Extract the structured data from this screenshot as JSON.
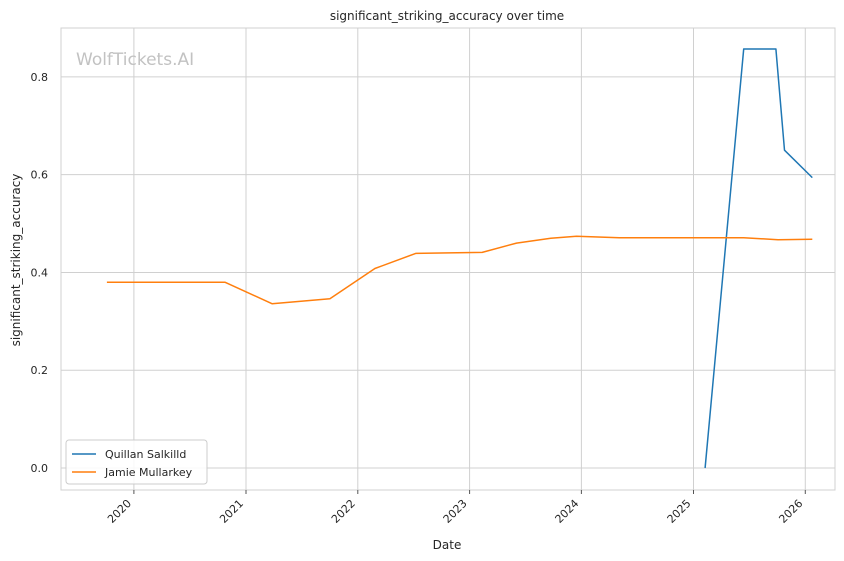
{
  "chart_data": {
    "type": "line",
    "title": "significant_striking_accuracy over time",
    "xlabel": "Date",
    "ylabel": "significant_striking_accuracy",
    "watermark": "WolfTickets.AI",
    "x_ticks": [
      "2020",
      "2021",
      "2022",
      "2023",
      "2024",
      "2025",
      "2026"
    ],
    "y_ticks": [
      "0.0",
      "0.2",
      "0.4",
      "0.6",
      "0.8"
    ],
    "ylim": [
      -0.045,
      0.9
    ],
    "xlim": [
      "2019-05-08",
      "2026-04-08"
    ],
    "grid": true,
    "legend_position": "lower-left",
    "series": [
      {
        "name": "Quillan Salkilld",
        "color": "#1f77b4",
        "points": [
          {
            "x": "2025-02-08",
            "y": 0.0
          },
          {
            "x": "2025-06-14",
            "y": 0.857
          },
          {
            "x": "2025-09-27",
            "y": 0.857
          },
          {
            "x": "2025-10-25",
            "y": 0.65
          },
          {
            "x": "2026-01-24",
            "y": 0.594
          }
        ]
      },
      {
        "name": "Jamie Mullarkey",
        "color": "#ff7f0e",
        "points": [
          {
            "x": "2019-10-05",
            "y": 0.38
          },
          {
            "x": "2020-10-24",
            "y": 0.38
          },
          {
            "x": "2021-03-27",
            "y": 0.336
          },
          {
            "x": "2021-10-02",
            "y": 0.346
          },
          {
            "x": "2022-02-26",
            "y": 0.408
          },
          {
            "x": "2022-07-09",
            "y": 0.439
          },
          {
            "x": "2023-02-11",
            "y": 0.441
          },
          {
            "x": "2023-06-03",
            "y": 0.46
          },
          {
            "x": "2023-09-23",
            "y": 0.47
          },
          {
            "x": "2023-12-16",
            "y": 0.474
          },
          {
            "x": "2024-05-04",
            "y": 0.471
          },
          {
            "x": "2025-06-14",
            "y": 0.471
          },
          {
            "x": "2025-10-04",
            "y": 0.467
          },
          {
            "x": "2026-01-24",
            "y": 0.468
          }
        ]
      }
    ]
  }
}
